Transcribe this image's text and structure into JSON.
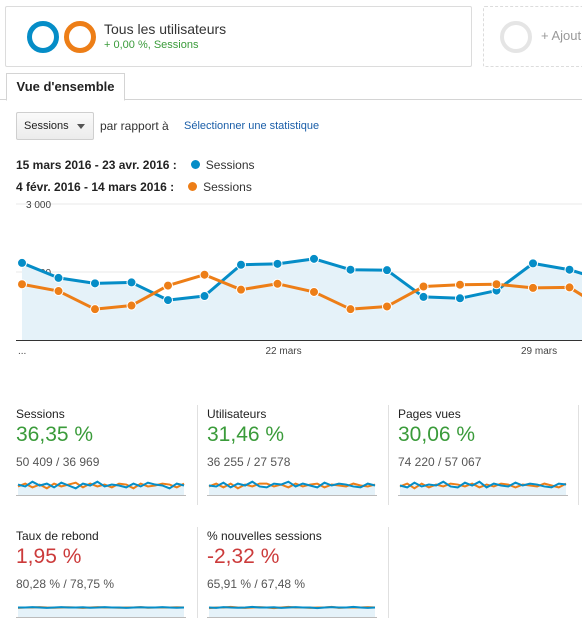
{
  "segment": {
    "title": "Tous les utilisateurs",
    "subtitle": "+ 0,00 %, Sessions",
    "add_label": "+ Ajout"
  },
  "tabs": [
    {
      "label": "Vue d'ensemble",
      "active": true
    }
  ],
  "toolbar": {
    "metric_select": "Sessions",
    "compare_label": "par rapport à",
    "select_stat_link": "Sélectionner une statistique"
  },
  "legend": [
    {
      "range": "15 mars 2016 - 23 avr. 2016 :",
      "series": "Sessions",
      "color": "#058dc7"
    },
    {
      "range": "4 févr. 2016 - 14 mars 2016 :",
      "series": "Sessions",
      "color": "#ed7e17"
    }
  ],
  "chart_data": {
    "type": "area",
    "y_ticks": [
      "3 000",
      "1 500"
    ],
    "x_ticks": [
      "...",
      "22 mars",
      "29 mars"
    ],
    "ylim": [
      0,
      3000
    ],
    "series": [
      {
        "name": "Sessions",
        "color": "#058dc7",
        "values": [
          1700,
          1370,
          1250,
          1270,
          880,
          970,
          1660,
          1680,
          1790,
          1550,
          1540,
          950,
          920,
          1090,
          1690,
          1550,
          1300
        ]
      },
      {
        "name": "Sessions",
        "color": "#ed7e17",
        "values": [
          1230,
          1080,
          680,
          760,
          1200,
          1440,
          1110,
          1240,
          1060,
          680,
          740,
          1180,
          1220,
          1230,
          1150,
          1160,
          660
        ]
      }
    ]
  },
  "metrics": [
    {
      "title": "Sessions",
      "value": "36,35 %",
      "sub": "50 409 / 36 969",
      "trend": "pos"
    },
    {
      "title": "Utilisateurs",
      "value": "31,46 %",
      "sub": "36 255 / 27 578",
      "trend": "pos"
    },
    {
      "title": "Pages vues",
      "value": "30,06 %",
      "sub": "74 220 / 57 067",
      "trend": "pos"
    },
    {
      "title": "Taux de rebond",
      "value": "1,95 %",
      "sub": "80,28 % / 78,75 %",
      "trend": "neg"
    },
    {
      "title": "% nouvelles sessions",
      "value": "-2,32 %",
      "sub": "65,91 % / 67,48 %",
      "trend": "neg"
    }
  ],
  "sparklines": [
    {
      "a": [
        0.55,
        0.45,
        0.7,
        0.5,
        0.6,
        0.4,
        0.65,
        0.5,
        0.35,
        0.6,
        0.5,
        0.7,
        0.45,
        0.55,
        0.5,
        0.4,
        0.6,
        0.45,
        0.65,
        0.55,
        0.5,
        0.35,
        0.6,
        0.5
      ],
      "b": [
        0.45,
        0.6,
        0.4,
        0.55,
        0.35,
        0.6,
        0.45,
        0.55,
        0.65,
        0.4,
        0.6,
        0.45,
        0.55,
        0.4,
        0.6,
        0.55,
        0.35,
        0.6,
        0.45,
        0.5,
        0.6,
        0.55,
        0.4,
        0.6
      ]
    },
    {
      "a": [
        0.5,
        0.45,
        0.65,
        0.4,
        0.6,
        0.5,
        0.7,
        0.45,
        0.4,
        0.6,
        0.55,
        0.7,
        0.45,
        0.6,
        0.5,
        0.4,
        0.65,
        0.5,
        0.6,
        0.55,
        0.45,
        0.4,
        0.6,
        0.5
      ],
      "b": [
        0.45,
        0.6,
        0.4,
        0.6,
        0.35,
        0.55,
        0.45,
        0.6,
        0.6,
        0.45,
        0.55,
        0.4,
        0.6,
        0.45,
        0.55,
        0.6,
        0.4,
        0.55,
        0.5,
        0.45,
        0.6,
        0.5,
        0.45,
        0.55
      ]
    },
    {
      "a": [
        0.5,
        0.4,
        0.65,
        0.45,
        0.55,
        0.5,
        0.7,
        0.45,
        0.4,
        0.65,
        0.5,
        0.7,
        0.4,
        0.6,
        0.5,
        0.45,
        0.65,
        0.5,
        0.6,
        0.55,
        0.45,
        0.4,
        0.6,
        0.55
      ],
      "b": [
        0.45,
        0.6,
        0.35,
        0.6,
        0.4,
        0.55,
        0.45,
        0.6,
        0.55,
        0.45,
        0.6,
        0.4,
        0.55,
        0.45,
        0.6,
        0.55,
        0.4,
        0.55,
        0.5,
        0.45,
        0.6,
        0.5,
        0.4,
        0.6
      ]
    },
    {
      "a": [
        0.5,
        0.5,
        0.52,
        0.5,
        0.48,
        0.5,
        0.52,
        0.5,
        0.5,
        0.51,
        0.49,
        0.5,
        0.52,
        0.5,
        0.5,
        0.48,
        0.5,
        0.51,
        0.5,
        0.5,
        0.52,
        0.5,
        0.49,
        0.5
      ],
      "b": [
        0.48,
        0.5,
        0.5,
        0.52,
        0.5,
        0.49,
        0.5,
        0.51,
        0.5,
        0.48,
        0.5,
        0.52,
        0.5,
        0.5,
        0.49,
        0.5,
        0.5,
        0.52,
        0.49,
        0.5,
        0.5,
        0.5,
        0.51,
        0.5
      ]
    },
    {
      "a": [
        0.5,
        0.48,
        0.52,
        0.5,
        0.49,
        0.5,
        0.53,
        0.5,
        0.5,
        0.51,
        0.48,
        0.5,
        0.52,
        0.5,
        0.5,
        0.47,
        0.5,
        0.52,
        0.5,
        0.5,
        0.53,
        0.5,
        0.48,
        0.5
      ],
      "b": [
        0.47,
        0.5,
        0.5,
        0.53,
        0.5,
        0.48,
        0.5,
        0.52,
        0.5,
        0.47,
        0.5,
        0.53,
        0.5,
        0.5,
        0.48,
        0.5,
        0.5,
        0.53,
        0.48,
        0.5,
        0.5,
        0.5,
        0.52,
        0.5
      ]
    }
  ]
}
